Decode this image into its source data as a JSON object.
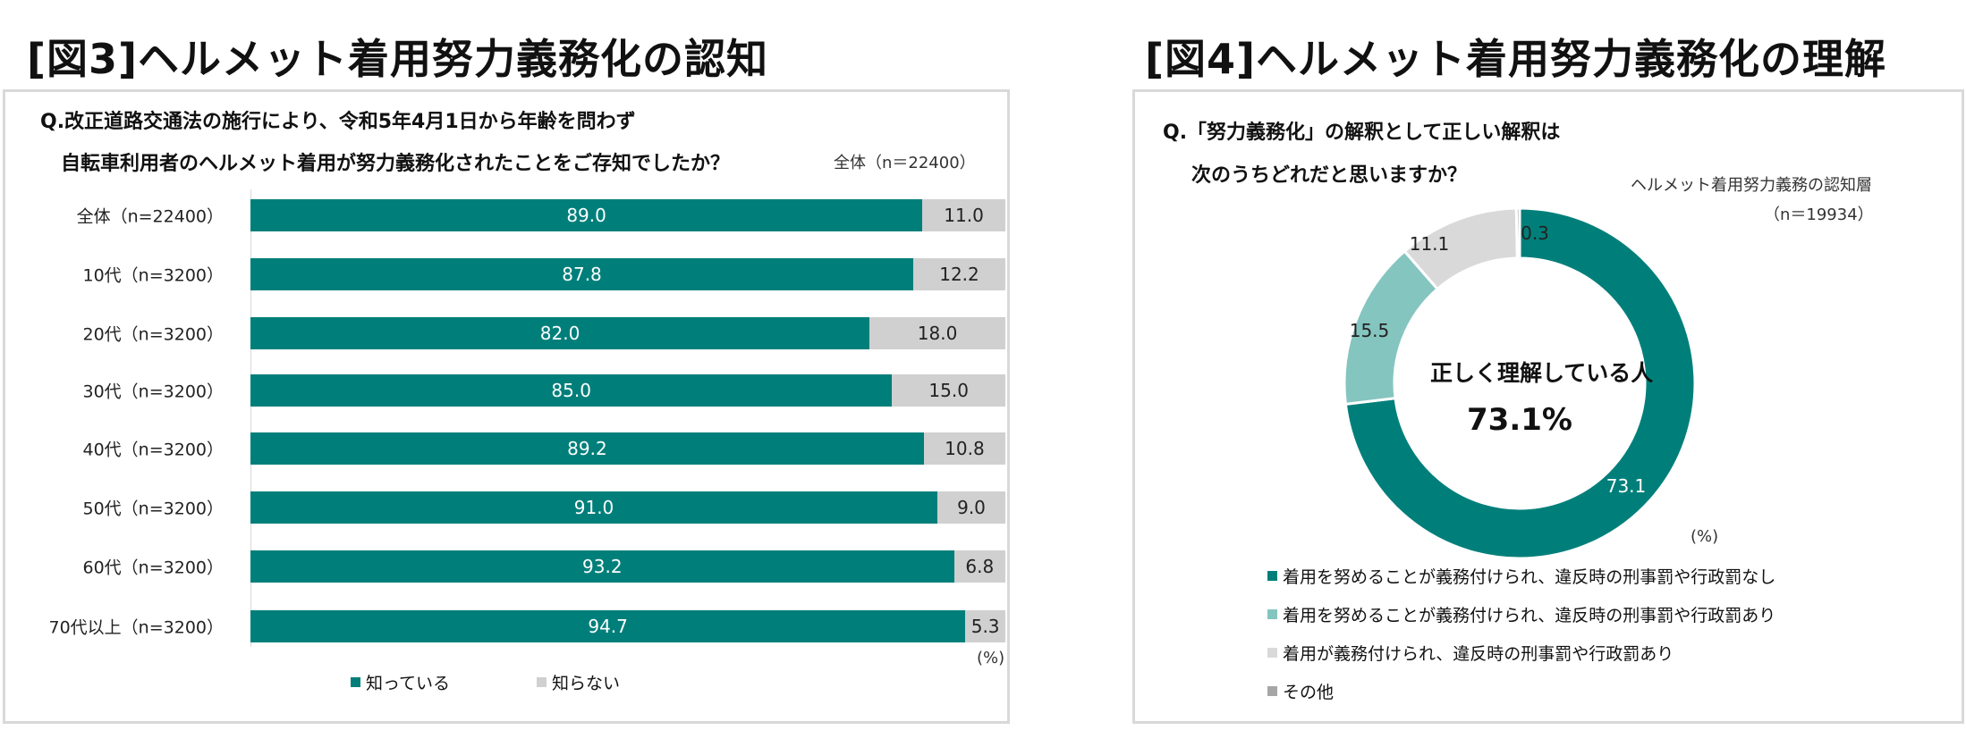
{
  "fig3": {
    "title": "[図3]ヘルメット着用努力義務化の認知",
    "question_line1": "Q.改正道路交通法の施行により、令和5年4月1日から年齢を問わず",
    "question_line2": "自転車利用者のヘルメット着用が努力義務化されたことをご存知でしたか？",
    "sample_note": "全体（n＝22400）",
    "unit": "(%)"
  },
  "fig4": {
    "title": "[図4]ヘルメット着用努力義務化の理解",
    "question_line1": "Q.「努力義務化」の解釈として正しい解釈は",
    "question_line2": "次のうちどれだと思いますか？",
    "sample_note_line1": "ヘルメット着用努力義務の認知層",
    "sample_note_line2": "（n＝19934）",
    "center_label": "正しく理解している人",
    "center_value": "73.1%",
    "unit": "(%)"
  },
  "chart_data": [
    {
      "type": "bar",
      "orientation": "horizontal-stacked-100",
      "title": "[図3]ヘルメット着用努力義務化の認知",
      "categories": [
        "全体（n=22400）",
        "10代（n=3200）",
        "20代（n=3200）",
        "30代（n=3200）",
        "40代（n=3200）",
        "50代（n=3200）",
        "60代（n=3200）",
        "70代以上（n=3200）"
      ],
      "series": [
        {
          "name": "知っている",
          "color": "#007f7a",
          "values": [
            89.0,
            87.8,
            82.0,
            85.0,
            89.2,
            91.0,
            93.2,
            94.7
          ]
        },
        {
          "name": "知らない",
          "color": "#d0d0d0",
          "values": [
            11.0,
            12.2,
            18.0,
            15.0,
            10.8,
            9.0,
            6.8,
            5.3
          ]
        }
      ],
      "xlim": [
        0,
        100
      ],
      "legend": "bottom"
    },
    {
      "type": "pie",
      "variant": "donut",
      "title": "[図4]ヘルメット着用努力義務化の理解",
      "labels": [
        "着用を努めることが義務付けられ、違反時の刑事罰や行政罰なし",
        "着用を努めることが義務付けられ、違反時の刑事罰や行政罰あり",
        "着用が義務付けられ、違反時の刑事罰や行政罰あり",
        "その他"
      ],
      "values": [
        73.1,
        15.5,
        11.1,
        0.3
      ],
      "value_labels": [
        "73.1",
        "15.5",
        "11.1",
        "0.3"
      ],
      "colors": [
        "#007f7a",
        "#85c5c0",
        "#d9d9d9",
        "#a6a6a6"
      ],
      "legend": "bottom"
    }
  ]
}
